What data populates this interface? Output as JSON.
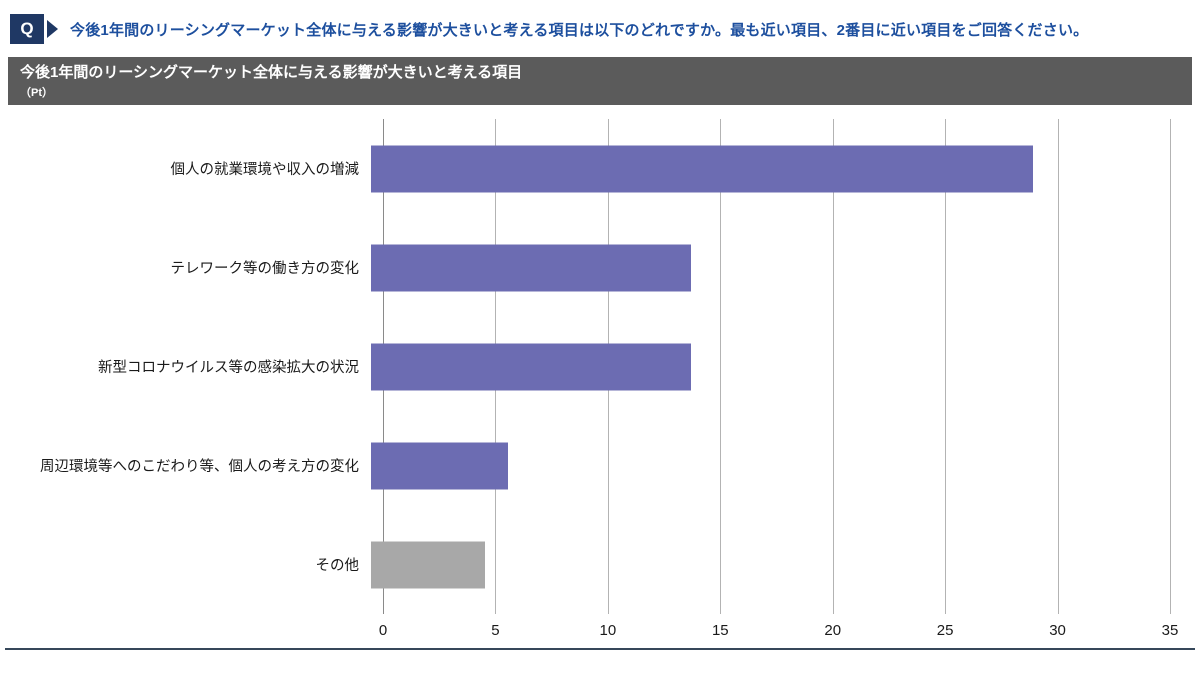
{
  "question": {
    "badge": "Q",
    "text": "今後1年間のリーシングマーケット全体に与える影響が大きいと考える項目は以下のどれですか。最も近い項目、2番目に近い項目をご回答ください。"
  },
  "panel": {
    "title": "今後1年間のリーシングマーケット全体に与える影響が大きいと考える項目",
    "unit": "（Pt）"
  },
  "colors": {
    "badge_bg": "#1f3864",
    "question_text": "#1d4f9e",
    "panel_bg": "#5b5b5b",
    "bar_default": "#6c6cb2",
    "bar_other": "#a8a8a8",
    "grid_line": "#b3b3b3",
    "bottom_rule": "#36475a"
  },
  "chart_data": {
    "type": "bar",
    "orientation": "horizontal",
    "title": "今後1年間のリーシングマーケット全体に与える影響が大きいと考える項目",
    "unit_label": "（Pt）",
    "categories": [
      "個人の就業環境や収入の増減",
      "テレワーク等の働き方の変化",
      "新型コロナウイルス等の感染拡大の状況",
      "周辺環境等へのこだわり等、個人の考え方の変化",
      "その他"
    ],
    "values": [
      29,
      14,
      14,
      6,
      5
    ],
    "bar_colors": [
      "#6c6cb2",
      "#6c6cb2",
      "#6c6cb2",
      "#6c6cb2",
      "#a8a8a8"
    ],
    "xlim": [
      0,
      35
    ],
    "xticks": [
      0,
      5,
      10,
      15,
      20,
      25,
      30,
      35
    ],
    "grid": true,
    "legend": false
  }
}
